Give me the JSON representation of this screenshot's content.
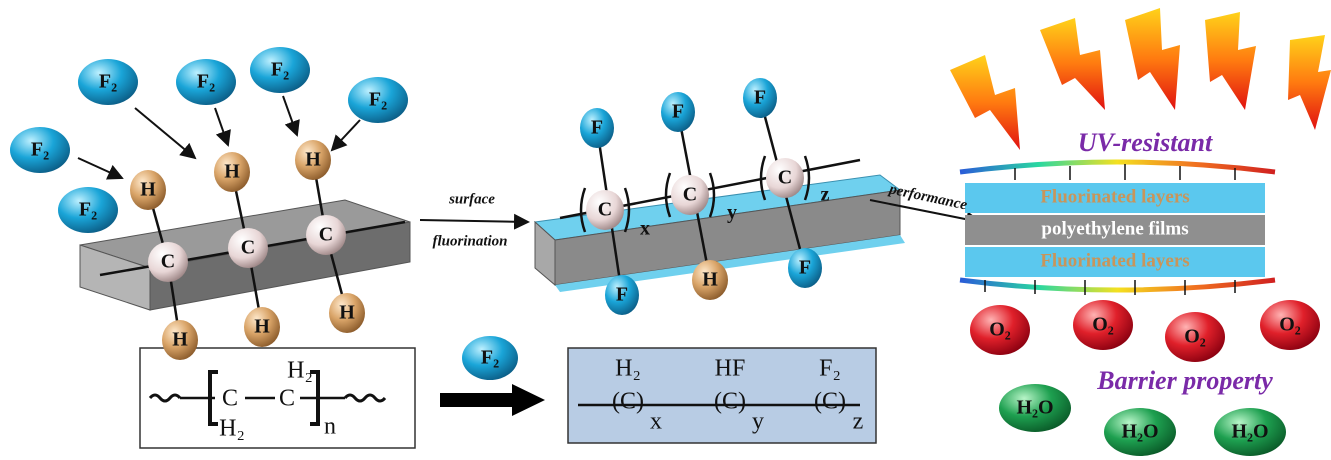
{
  "left_molecule": {
    "f2": [
      "F₂",
      "F₂",
      "F₂",
      "F₂",
      "F₂",
      "F₂"
    ],
    "hydrogens": [
      "H",
      "H",
      "H",
      "H",
      "H",
      "H"
    ],
    "carbons": [
      "C",
      "C",
      "C"
    ]
  },
  "process_arrow": {
    "line1": "surface",
    "line2": "fluorination"
  },
  "middle_molecule": {
    "fluorines": [
      "F",
      "F",
      "F",
      "F",
      "F"
    ],
    "hydrogen": "H",
    "carbons": [
      "C",
      "C",
      "C"
    ],
    "subscripts": [
      "x",
      "y",
      "z"
    ]
  },
  "performance_arrow": "performance",
  "film": {
    "uv_label": "UV-resistant",
    "layers": [
      "Fluorinated layers",
      "polyethylene films",
      "Fluorinated layers"
    ],
    "barrier_label": "Barrier property",
    "oxygen": [
      "O₂",
      "O₂",
      "O₂",
      "O₂"
    ],
    "water": [
      "H₂O",
      "H₂O",
      "H₂O"
    ]
  },
  "reaction": {
    "reagent": "F₂",
    "reactant": {
      "top_h": "H₂",
      "c1": "C",
      "c2": "C",
      "bottom_h": "H₂",
      "n": "n"
    },
    "product": {
      "top": [
        "H₂",
        "HF",
        "F₂"
      ],
      "units": [
        "(C)",
        "(C)",
        "(C)"
      ],
      "subscripts": [
        "x",
        "y",
        "z"
      ]
    }
  }
}
